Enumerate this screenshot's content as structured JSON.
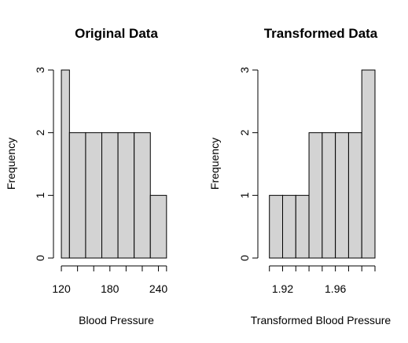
{
  "chart_data": [
    {
      "type": "bar",
      "title": "Original Data",
      "xlabel": "Blood Pressure",
      "ylabel": "Frequency",
      "bins": [
        {
          "x0": 120,
          "x1": 130,
          "count": 3
        },
        {
          "x0": 130,
          "x1": 150,
          "count": 2
        },
        {
          "x0": 150,
          "x1": 170,
          "count": 2
        },
        {
          "x0": 170,
          "x1": 190,
          "count": 2
        },
        {
          "x0": 190,
          "x1": 210,
          "count": 2
        },
        {
          "x0": 210,
          "x1": 230,
          "count": 2
        },
        {
          "x0": 230,
          "x1": 250,
          "count": 1
        }
      ],
      "xlim": [
        118,
        256
      ],
      "ylim": [
        0,
        3
      ],
      "xticks": [
        120,
        140,
        160,
        180,
        200,
        220,
        240,
        250
      ],
      "xtick_labels": [
        {
          "value": 120,
          "label": "120"
        },
        {
          "value": 180,
          "label": "180"
        },
        {
          "value": 240,
          "label": "240"
        }
      ],
      "yticks": [
        0,
        1,
        2,
        3
      ],
      "grid": false
    },
    {
      "type": "bar",
      "title": "Transformed Data",
      "xlabel": "Transformed Blood Pressure",
      "ylabel": "Frequency",
      "bins": [
        {
          "x0": 1.91,
          "x1": 1.92,
          "count": 1
        },
        {
          "x0": 1.92,
          "x1": 1.93,
          "count": 1
        },
        {
          "x0": 1.93,
          "x1": 1.94,
          "count": 1
        },
        {
          "x0": 1.94,
          "x1": 1.95,
          "count": 2
        },
        {
          "x0": 1.95,
          "x1": 1.96,
          "count": 2
        },
        {
          "x0": 1.96,
          "x1": 1.97,
          "count": 2
        },
        {
          "x0": 1.97,
          "x1": 1.98,
          "count": 2
        },
        {
          "x0": 1.98,
          "x1": 1.99,
          "count": 3
        }
      ],
      "xlim": [
        1.906,
        1.99
      ],
      "ylim": [
        0,
        3
      ],
      "xticks": [
        1.91,
        1.92,
        1.93,
        1.94,
        1.95,
        1.96,
        1.97,
        1.98,
        1.99
      ],
      "xtick_labels": [
        {
          "value": 1.92,
          "label": "1.92"
        },
        {
          "value": 1.96,
          "label": "1.96"
        }
      ],
      "yticks": [
        0,
        1,
        2,
        3
      ],
      "grid": false
    }
  ]
}
